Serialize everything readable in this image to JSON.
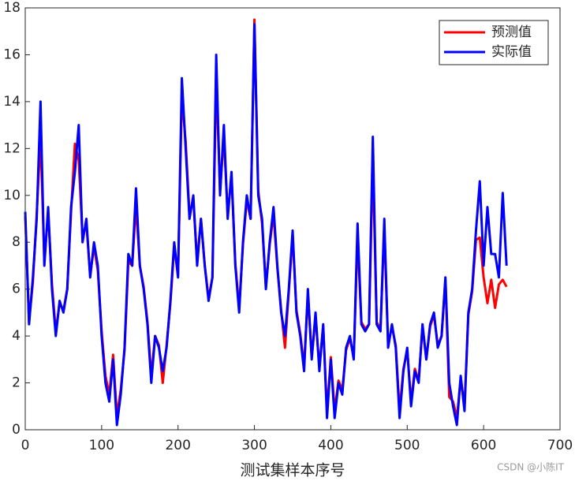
{
  "chart_data": {
    "type": "line",
    "x_label": "测试集样本序号",
    "watermark": "CSDN @小陈IT",
    "x": [
      0,
      5,
      10,
      15,
      20,
      25,
      30,
      35,
      40,
      45,
      50,
      55,
      60,
      65,
      70,
      75,
      80,
      85,
      90,
      95,
      100,
      105,
      110,
      115,
      120,
      125,
      130,
      135,
      140,
      145,
      150,
      155,
      160,
      165,
      170,
      175,
      180,
      185,
      190,
      195,
      200,
      205,
      210,
      215,
      220,
      225,
      230,
      235,
      240,
      245,
      250,
      255,
      260,
      265,
      270,
      275,
      280,
      285,
      290,
      295,
      300,
      305,
      310,
      315,
      320,
      325,
      330,
      335,
      340,
      345,
      350,
      355,
      360,
      365,
      370,
      375,
      380,
      385,
      390,
      395,
      400,
      405,
      410,
      415,
      420,
      425,
      430,
      435,
      440,
      445,
      450,
      455,
      460,
      465,
      470,
      475,
      480,
      485,
      490,
      495,
      500,
      505,
      510,
      515,
      520,
      525,
      530,
      535,
      540,
      545,
      550,
      555,
      560,
      565,
      570,
      575,
      580,
      585,
      590,
      595,
      600,
      605,
      610,
      615,
      620,
      625,
      630
    ],
    "series": [
      {
        "name": "预测值",
        "color": "#ff0000",
        "values": [
          9.1,
          4.6,
          6.3,
          9.2,
          12.5,
          7.2,
          9.3,
          6.2,
          4.2,
          5.4,
          5.1,
          6,
          9.3,
          12.2,
          11.5,
          8.2,
          8.8,
          6.6,
          7.8,
          6.8,
          4.2,
          2.3,
          1.5,
          3.2,
          0.6,
          1.7,
          3.4,
          7.2,
          7,
          9.6,
          7,
          6.1,
          4.6,
          2.3,
          4,
          3.6,
          2,
          3.6,
          5.4,
          7.8,
          6.6,
          14.2,
          12.3,
          9.2,
          9.8,
          7.2,
          9,
          7,
          5.6,
          6.5,
          15,
          10.2,
          12.5,
          9.2,
          10.8,
          7.1,
          5.2,
          7.9,
          9.8,
          9,
          17.5,
          10.2,
          8.8,
          6.1,
          7.9,
          9.2,
          6.9,
          5.1,
          3.5,
          5.9,
          8.3,
          5.1,
          4.1,
          2.7,
          5.8,
          3.1,
          4.8,
          2.7,
          4.4,
          0.8,
          3.1,
          0.8,
          2.1,
          1.7,
          3.4,
          3.9,
          3.1,
          8.2,
          4.6,
          4.3,
          4.5,
          11.5,
          4.6,
          4.3,
          8.6,
          3.6,
          4.4,
          3.6,
          0.8,
          2.6,
          3.4,
          1.2,
          2.6,
          2.1,
          4.4,
          3,
          4.4,
          4.9,
          3.6,
          4,
          6.4,
          1.4,
          1.2,
          0.5,
          2.2,
          1,
          4.9,
          5.9,
          8.1,
          8.2,
          6.5,
          5.4,
          6.4,
          5.2,
          6.2,
          6.4,
          6.1
        ]
      },
      {
        "name": "实际值",
        "color": "#0000ff",
        "values": [
          9.3,
          4.5,
          6.5,
          9,
          14,
          7,
          9.5,
          6,
          4,
          5.5,
          5,
          6,
          9.5,
          11,
          13,
          8,
          9,
          6.5,
          8,
          7,
          4,
          2,
          1.2,
          3,
          0.2,
          1.5,
          3.5,
          7.5,
          7,
          10.3,
          7,
          6,
          4.5,
          2,
          4,
          3.5,
          2.5,
          3.5,
          5.5,
          8,
          6.5,
          15,
          12,
          9,
          10,
          7,
          9,
          7,
          5.5,
          6.5,
          16,
          10,
          13,
          9,
          11,
          7,
          5,
          8,
          10,
          9,
          17.3,
          10,
          9,
          6,
          8,
          9.5,
          7,
          5,
          4,
          6,
          8.5,
          5,
          4,
          2.5,
          6,
          3,
          5,
          2.5,
          4.5,
          0.5,
          3,
          0.5,
          2,
          1.5,
          3.5,
          4,
          3,
          8.8,
          4.5,
          4.2,
          4.5,
          12.5,
          4.5,
          4.2,
          9,
          3.5,
          4.5,
          3.5,
          0.5,
          2.5,
          3.5,
          1,
          2.5,
          2,
          4.5,
          3,
          4.5,
          5,
          3.5,
          4,
          6.5,
          2,
          1,
          0.2,
          2.3,
          0.8,
          5,
          6,
          8.5,
          10.6,
          7,
          9.5,
          7.5,
          7.5,
          6.5,
          10.1,
          7
        ]
      }
    ],
    "xlim": [
      0,
      700
    ],
    "xticks": [
      0,
      100,
      200,
      300,
      400,
      500,
      600,
      700
    ],
    "ylim": [
      0,
      18
    ],
    "yticks": [
      0,
      2,
      4,
      6,
      8,
      10,
      12,
      14,
      16,
      18
    ],
    "legend": "northeast",
    "grid": false
  }
}
